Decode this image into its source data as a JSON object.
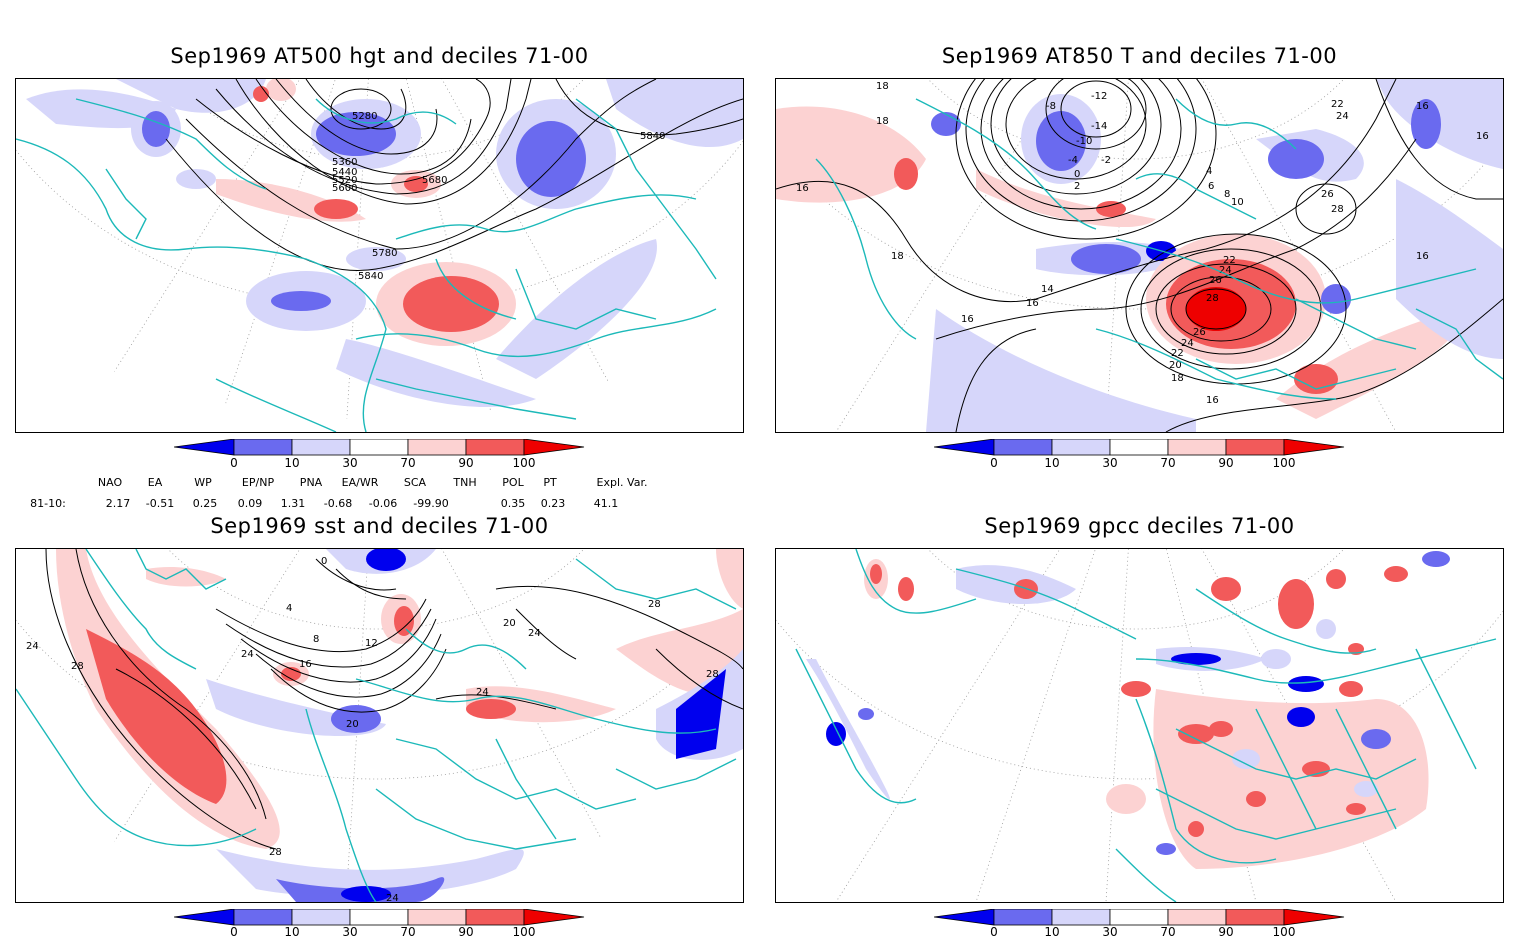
{
  "panels": [
    {
      "title": "Sep1969 AT500 hgt and deciles 71-00",
      "contour_labels": [
        "5280",
        "5360",
        "5440",
        "5520",
        "5600",
        "5680",
        "5780",
        "5840",
        "5840"
      ]
    },
    {
      "title": "Sep1969 AT850 T and deciles 71-00",
      "contour_labels": [
        "18",
        "18",
        "16",
        "-12",
        "-14",
        "-10",
        "-8",
        "-4",
        "-2",
        "2",
        "0",
        "4",
        "6",
        "8",
        "10",
        "22",
        "24",
        "26",
        "28",
        "16",
        "16",
        "16",
        "14",
        "16",
        "18",
        "22",
        "24",
        "26",
        "28",
        "26",
        "24",
        "22",
        "20",
        "18",
        "16",
        "16"
      ]
    },
    {
      "title": "Sep1969 sst and deciles 71-00",
      "contour_labels": [
        "24",
        "28",
        "0",
        "4",
        "8",
        "12",
        "16",
        "20",
        "24",
        "28",
        "24",
        "20",
        "24",
        "28",
        "28",
        "24"
      ]
    },
    {
      "title": "Sep1969 gpcc deciles 71-00",
      "contour_labels": []
    }
  ],
  "colorbar": {
    "tick_labels": [
      "0",
      "10",
      "30",
      "70",
      "90",
      "100"
    ],
    "colors": [
      "#0000ee",
      "#6a6aef",
      "#d6d6fa",
      "#ffffff",
      "#fcd2d2",
      "#f25a5a",
      "#ee0000"
    ]
  },
  "indices": {
    "headers": [
      "NAO",
      "EA",
      "WP",
      "EP/NP",
      "PNA",
      "EA/WR",
      "SCA",
      "TNH",
      "POL",
      "PT",
      "Expl. Var."
    ],
    "row_label": "81-10:",
    "values": [
      "2.17",
      "-0.51",
      "0.25",
      "0.09",
      "1.31",
      "-0.68",
      "-0.06",
      "-99.90",
      "0.35",
      "0.23",
      "41.1"
    ]
  }
}
